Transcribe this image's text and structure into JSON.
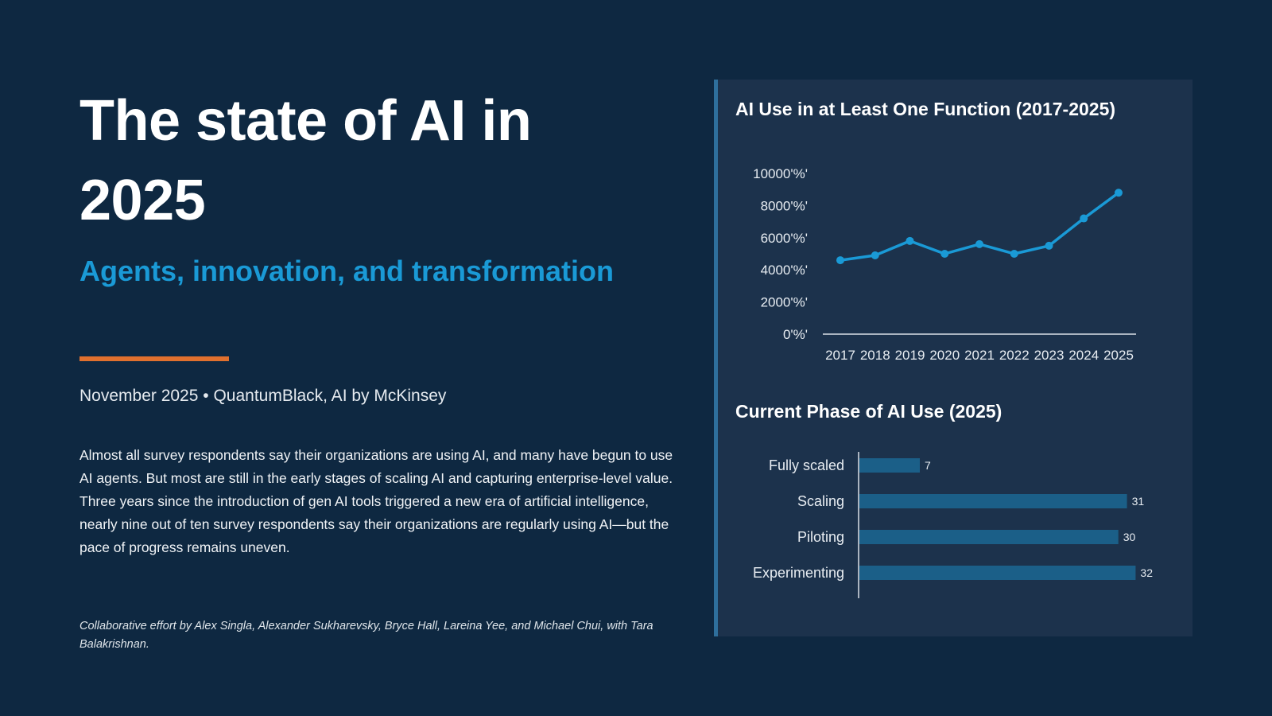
{
  "title": "The state of AI in 2025",
  "subtitle": "Agents, innovation, and transformation",
  "dateline": "November 2025 • QuantumBlack, AI by McKinsey",
  "body": "Almost all survey respondents say their organizations are using AI, and many have begun to use AI agents. But most are still in the early stages of scaling AI and capturing enterprise-level value. Three years since the introduction of gen AI tools triggered a new era of artificial intelligence, nearly nine out of ten survey respondents say their organizations are regularly using AI—but the pace of progress remains uneven.",
  "credits": "Collaborative effort by Alex Singla, Alexander Sukharevsky, Bryce Hall, Lareina Yee, and Michael Chui, with Tara Balakrishnan.",
  "colors": {
    "background": "#0e2841",
    "panel": "#1c324c",
    "accent_blue": "#1a9ad6",
    "accent_orange": "#e0702e",
    "bar": "#1b5f88"
  },
  "chart_data": [
    {
      "type": "line",
      "title": "AI Use in at Least One Function (2017-2025)",
      "x": [
        "2017",
        "2018",
        "2019",
        "2020",
        "2021",
        "2022",
        "2023",
        "2024",
        "2025"
      ],
      "series": [
        {
          "values": [
            4600,
            4900,
            5800,
            5000,
            5600,
            5000,
            5500,
            7200,
            8800
          ]
        }
      ],
      "ylim": [
        0,
        10000
      ],
      "y_ticks": [
        0,
        2000,
        4000,
        6000,
        8000,
        10000
      ],
      "y_tick_labels": [
        "0'%'",
        "2000'%'",
        "4000'%'",
        "6000'%'",
        "8000'%'",
        "10000'%'"
      ],
      "xlabel": "",
      "ylabel": "",
      "grid": false,
      "color": "#1a9ad6"
    },
    {
      "type": "bar",
      "orientation": "horizontal",
      "title": "Current Phase of AI Use (2025)",
      "categories": [
        "Fully scaled",
        "Scaling",
        "Piloting",
        "Experimenting"
      ],
      "values": [
        7,
        31,
        30,
        32
      ],
      "xlim": [
        0,
        35
      ],
      "grid": false,
      "color": "#1b5f88"
    }
  ]
}
